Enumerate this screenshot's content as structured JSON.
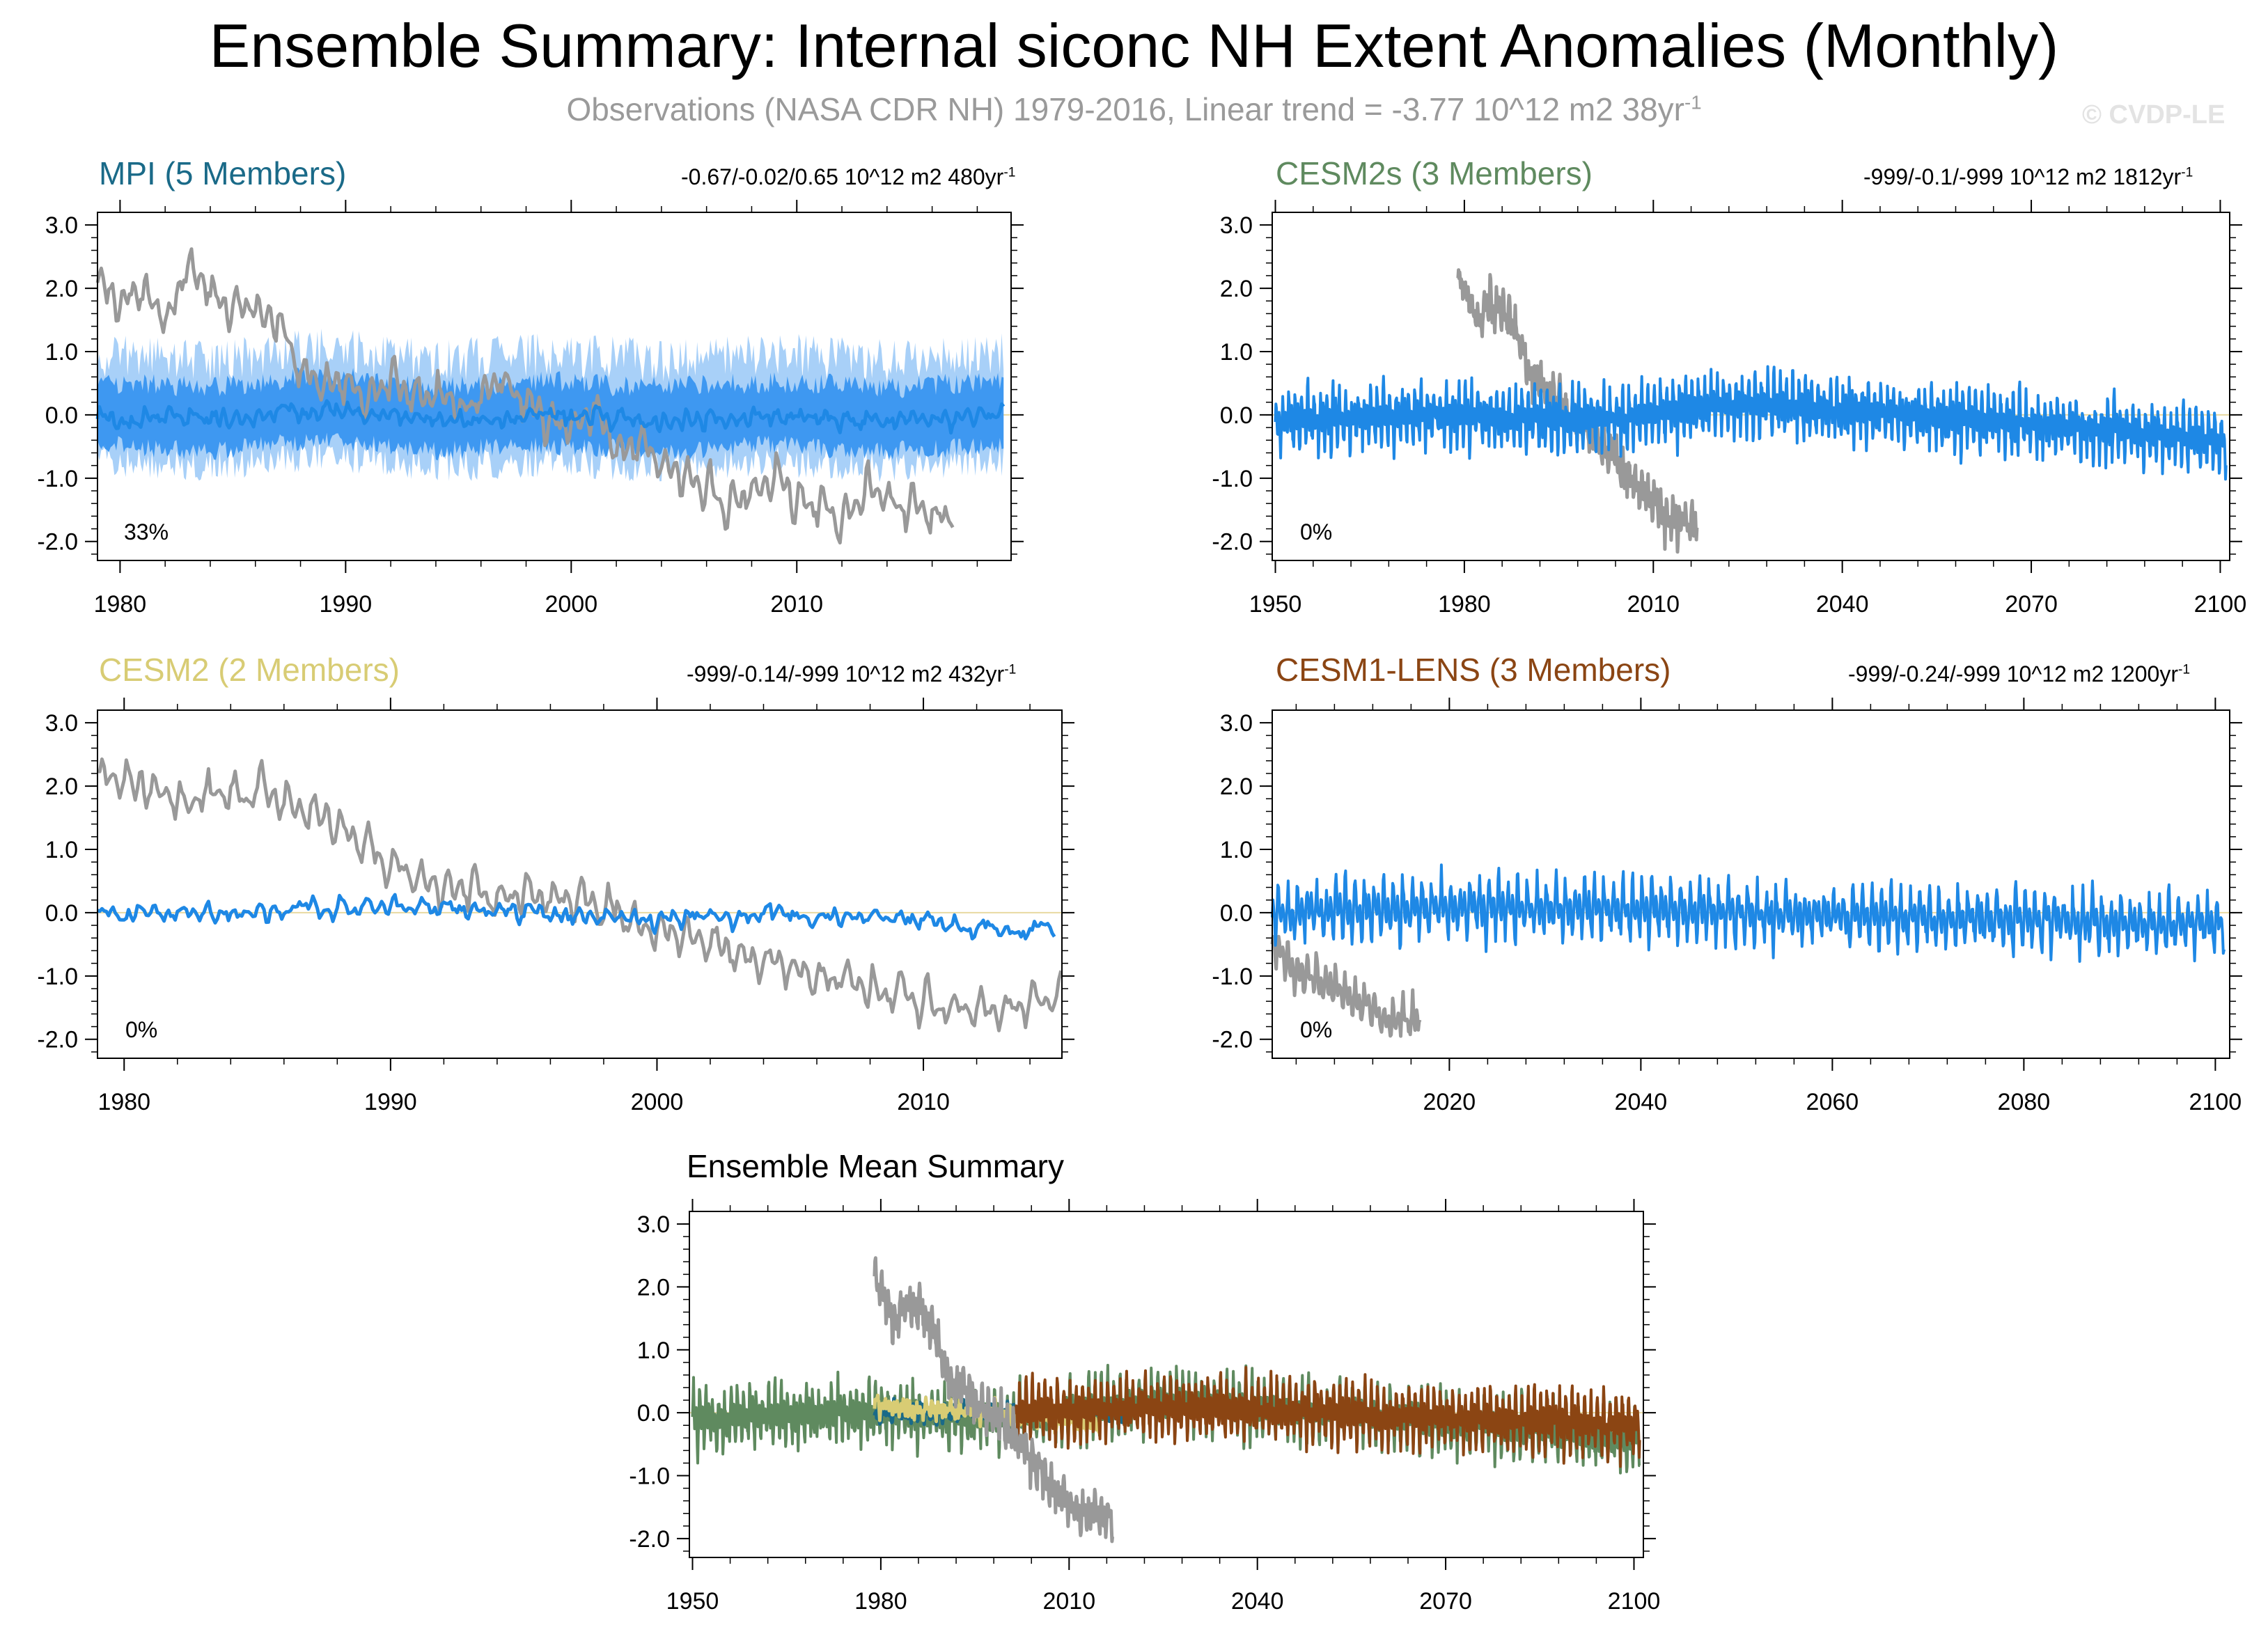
{
  "title": "Ensemble Summary: Internal siconc NH Extent Anomalies (Monthly)",
  "subtitle": "Observations (NASA CDR NH) 1979-2016, Linear trend = -3.77 10^12 m2 38yr",
  "subtitle_sup": "-1",
  "copyright": "© CVDP-LE",
  "colors": {
    "observations": "#999999",
    "member": "#1e88e5",
    "spread_inner": "#2b8ef0",
    "spread_outer": "#a8d0f8",
    "mpi": "#1a6a88",
    "cesm2s": "#5f8a5f",
    "cesm2": "#d8cc74",
    "cesm1_lens": "#8b4513",
    "zero_line": "#e8d9a0"
  },
  "panels": {
    "mpi": {
      "title": "MPI (5 Members)",
      "stat": "-0.67/-0.02/0.65 10^12 m2 480yr",
      "stat_sup": "-1",
      "percent": "33%",
      "y_ticks": [
        "3.0",
        "2.0",
        "1.0",
        "0.0",
        "-1.0",
        "-2.0"
      ],
      "x_ticks": [
        "1980",
        "1990",
        "2000",
        "2010"
      ]
    },
    "cesm2s": {
      "title": "CESM2s (3 Members)",
      "stat": "-999/-0.1/-999 10^12 m2 1812yr",
      "stat_sup": "-1",
      "percent": "0%",
      "y_ticks": [
        "3.0",
        "2.0",
        "1.0",
        "0.0",
        "-1.0",
        "-2.0"
      ],
      "x_ticks": [
        "1950",
        "1980",
        "2010",
        "2040",
        "2070",
        "2100"
      ]
    },
    "cesm2": {
      "title": "CESM2 (2 Members)",
      "stat": "-999/-0.14/-999 10^12 m2 432yr",
      "stat_sup": "-1",
      "percent": "0%",
      "y_ticks": [
        "3.0",
        "2.0",
        "1.0",
        "0.0",
        "-1.0",
        "-2.0"
      ],
      "x_ticks": [
        "1980",
        "1990",
        "2000",
        "2010"
      ]
    },
    "cesm1": {
      "title": "CESM1-LENS (3 Members)",
      "stat": "-999/-0.24/-999 10^12 m2 1200yr",
      "stat_sup": "-1",
      "percent": "0%",
      "y_ticks": [
        "3.0",
        "2.0",
        "1.0",
        "0.0",
        "-1.0",
        "-2.0"
      ],
      "x_ticks": [
        "2020",
        "2040",
        "2060",
        "2080",
        "2100"
      ]
    },
    "summary": {
      "title": "Ensemble Mean Summary",
      "y_ticks": [
        "3.0",
        "2.0",
        "1.0",
        "0.0",
        "-1.0",
        "-2.0"
      ],
      "x_ticks": [
        "1950",
        "1980",
        "2010",
        "2040",
        "2070",
        "2100"
      ]
    }
  },
  "chart_data": [
    {
      "type": "line",
      "id": "mpi",
      "title": "MPI (5 Members)",
      "xlim": [
        1979,
        2019.5
      ],
      "ylim": [
        -2.3,
        3.2
      ],
      "x_ticks": [
        1980,
        1990,
        2000,
        2010
      ],
      "y_ticks": [
        3.0,
        2.0,
        1.0,
        0.0,
        -1.0,
        -2.0
      ],
      "series": [
        {
          "name": "",
          "color": "#999999",
          "x_start": 1979,
          "x_end": 2016.9,
          "x": [
            1979,
            1980,
            1981,
            1982,
            1983,
            1984,
            1985,
            1986,
            1987,
            1988,
            1989,
            1990,
            1991,
            1992,
            1993,
            1994,
            1995,
            1996,
            1997,
            1998,
            1999,
            2000,
            2001,
            2002,
            2003,
            2004,
            2005,
            2006,
            2007,
            2008,
            2009,
            2010,
            2011,
            2012,
            2013,
            2014,
            2015,
            2016
          ],
          "y": [
            2.2,
            1.8,
            2.0,
            1.5,
            2.3,
            1.9,
            1.6,
            1.7,
            1.5,
            0.6,
            0.4,
            0.5,
            0.2,
            0.6,
            0.3,
            0.4,
            0.0,
            0.3,
            0.6,
            0.2,
            -0.1,
            -0.2,
            0.1,
            -0.6,
            -0.4,
            -0.8,
            -1.0,
            -1.1,
            -1.5,
            -1.2,
            -0.9,
            -1.3,
            -1.5,
            -1.7,
            -1.2,
            -1.3,
            -1.5,
            -1.6
          ]
        },
        {
          "name": "",
          "color": "#1e88e5",
          "x_start": 1979,
          "x_end": 2019.2,
          "x": [
            1979,
            1984,
            1989,
            1994,
            1999,
            2004,
            2009,
            2014,
            2019
          ],
          "y": [
            0.0,
            -0.1,
            0.1,
            -0.1,
            0.0,
            -0.1,
            0.0,
            -0.1,
            0.0
          ]
        }
      ]
    },
    {
      "type": "line",
      "id": "cesm2s",
      "title": "CESM2s (3 Members)",
      "xlim": [
        1949.5,
        2101.5
      ],
      "ylim": [
        -2.3,
        3.2
      ],
      "x_ticks": [
        1950,
        1980,
        2010,
        2040,
        2070,
        2100
      ],
      "y_ticks": [
        3.0,
        2.0,
        1.0,
        0.0,
        -1.0,
        -2.0
      ],
      "series": [
        {
          "name": "",
          "color": "#999999",
          "x_start": 1979,
          "x_end": 2016.9,
          "x": [
            1979,
            1982,
            1985,
            1988,
            1991,
            1994,
            1997,
            2000,
            2003,
            2006,
            2009,
            2012,
            2016
          ],
          "y": [
            2.2,
            1.5,
            1.8,
            1.4,
            0.5,
            0.3,
            0.0,
            -0.2,
            -0.6,
            -1.0,
            -1.3,
            -1.6,
            -1.7
          ]
        },
        {
          "name": "",
          "color": "#1e88e5",
          "x_start": 1950,
          "x_end": 2100.9,
          "x": [
            1950,
            1975,
            2000,
            2025,
            2050,
            2075,
            2100
          ],
          "y": [
            -0.1,
            0.0,
            -0.1,
            0.2,
            0.0,
            -0.2,
            -0.4
          ]
        }
      ]
    },
    {
      "type": "line",
      "id": "cesm2",
      "title": "CESM2 (2 Members)",
      "xlim": [
        1979,
        2015.2
      ],
      "ylim": [
        -2.3,
        3.2
      ],
      "x_ticks": [
        1980,
        1990,
        2000,
        2010
      ],
      "y_ticks": [
        3.0,
        2.0,
        1.0,
        0.0,
        -1.0,
        -2.0
      ],
      "series": [
        {
          "name": "",
          "color": "#999999",
          "x_start": 1979,
          "x_end": 2015.2,
          "x": [
            1979,
            1982,
            1985,
            1988,
            1991,
            1994,
            1997,
            2000,
            2003,
            2006,
            2009,
            2012,
            2015
          ],
          "y": [
            2.2,
            1.8,
            1.9,
            1.4,
            0.5,
            0.3,
            0.2,
            -0.2,
            -0.6,
            -1.0,
            -1.3,
            -1.6,
            -1.4
          ]
        },
        {
          "name": "",
          "color": "#1e88e5",
          "x_start": 1979,
          "x_end": 2014.9,
          "x": [
            1979,
            1985,
            1990,
            1995,
            2000,
            2005,
            2010,
            2014
          ],
          "y": [
            0.0,
            0.0,
            0.1,
            0.0,
            -0.1,
            0.0,
            -0.1,
            -0.3
          ]
        }
      ]
    },
    {
      "type": "line",
      "id": "cesm1",
      "title": "CESM1-LENS (3 Members)",
      "xlim": [
        2001.5,
        2101.5
      ],
      "ylim": [
        -2.3,
        3.2
      ],
      "x_ticks": [
        2020,
        2040,
        2060,
        2080,
        2100
      ],
      "y_ticks": [
        3.0,
        2.0,
        1.0,
        0.0,
        -1.0,
        -2.0
      ],
      "series": [
        {
          "name": "",
          "color": "#999999",
          "x_start": 2001.5,
          "x_end": 2016.9,
          "x": [
            2001.5,
            2004,
            2007,
            2010,
            2013,
            2016
          ],
          "y": [
            -0.5,
            -0.9,
            -1.1,
            -1.4,
            -1.6,
            -1.7
          ]
        },
        {
          "name": "",
          "color": "#1e88e5",
          "x_start": 2001.5,
          "x_end": 2100.9,
          "x": [
            2002,
            2025,
            2050,
            2075,
            2100
          ],
          "y": [
            0.0,
            0.1,
            0.0,
            -0.1,
            -0.2
          ]
        }
      ]
    },
    {
      "type": "line",
      "id": "summary",
      "title": "Ensemble Mean Summary",
      "xlim": [
        1949.5,
        2101.5
      ],
      "ylim": [
        -2.3,
        3.2
      ],
      "x_ticks": [
        1950,
        1980,
        2010,
        2040,
        2070,
        2100
      ],
      "y_ticks": [
        3.0,
        2.0,
        1.0,
        0.0,
        -1.0,
        -2.0
      ],
      "series": [
        {
          "name": "",
          "color": "#5f8a5f",
          "x_start": 1950,
          "x_end": 2100.9,
          "x": [
            1950,
            1975,
            2000,
            2025,
            2050,
            2075,
            2100
          ],
          "y": [
            -0.1,
            0.0,
            -0.1,
            0.2,
            0.0,
            -0.2,
            -0.4
          ]
        },
        {
          "name": "",
          "color": "#1a6a88",
          "x_start": 1979,
          "x_end": 2019.2,
          "x": [
            1979,
            1999,
            2019
          ],
          "y": [
            0.0,
            0.0,
            0.0
          ]
        },
        {
          "name": "",
          "color": "#d8cc74",
          "x_start": 1979,
          "x_end": 2014.9,
          "x": [
            1979,
            1997,
            2014
          ],
          "y": [
            0.1,
            0.0,
            -0.2
          ]
        },
        {
          "name": "",
          "color": "#8b4513",
          "x_start": 2001.5,
          "x_end": 2100.9,
          "x": [
            2002,
            2025,
            2050,
            2075,
            2100
          ],
          "y": [
            0.0,
            0.1,
            0.0,
            -0.1,
            -0.2
          ]
        },
        {
          "name": "",
          "color": "#999999",
          "x_start": 1979,
          "x_end": 2016.9,
          "x": [
            1979,
            1982,
            1985,
            1988,
            1991,
            1994,
            1997,
            2000,
            2003,
            2006,
            2009,
            2012,
            2016
          ],
          "y": [
            2.2,
            1.5,
            1.8,
            1.4,
            0.5,
            0.3,
            0.0,
            -0.2,
            -0.6,
            -1.0,
            -1.3,
            -1.6,
            -1.7
          ]
        }
      ]
    }
  ]
}
